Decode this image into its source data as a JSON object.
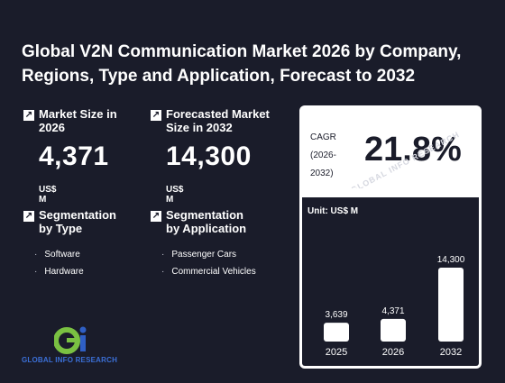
{
  "title": "Global V2N Communication Market 2026 by Company, Regions, Type and Application, Forecast to 2032",
  "stats": {
    "market_size": {
      "label": "Market Size in 2026",
      "value": "4,371",
      "unit": "US$ M"
    },
    "forecast": {
      "label": "Forecasted Market Size in 2032",
      "value": "14,300",
      "unit": "US$ M"
    }
  },
  "segmentation": {
    "type": {
      "label": "Segmentation by Type",
      "items": [
        "Software",
        "Hardware"
      ]
    },
    "application": {
      "label": "Segmentation by Application",
      "items": [
        "Passenger Cars",
        "Commercial Vehicles"
      ]
    }
  },
  "cagr": {
    "label": "CAGR (2026-2032)",
    "value": "21.8%"
  },
  "watermark": "GLOBAL INFO RESEARCH",
  "logo": {
    "text": "GLOBAL INFO RESEARCH",
    "colors": {
      "green": "#7ac142",
      "blue": "#2f5fc4"
    }
  },
  "chart_data": {
    "type": "bar",
    "unit_label": "Unit: US$ M",
    "categories": [
      "2025",
      "2026",
      "2032"
    ],
    "values": [
      3639,
      4371,
      14300
    ],
    "value_labels": [
      "3,639",
      "4,371",
      "14,300"
    ],
    "ylim": [
      0,
      14300
    ],
    "bar_color": "#ffffff",
    "grid": false
  }
}
